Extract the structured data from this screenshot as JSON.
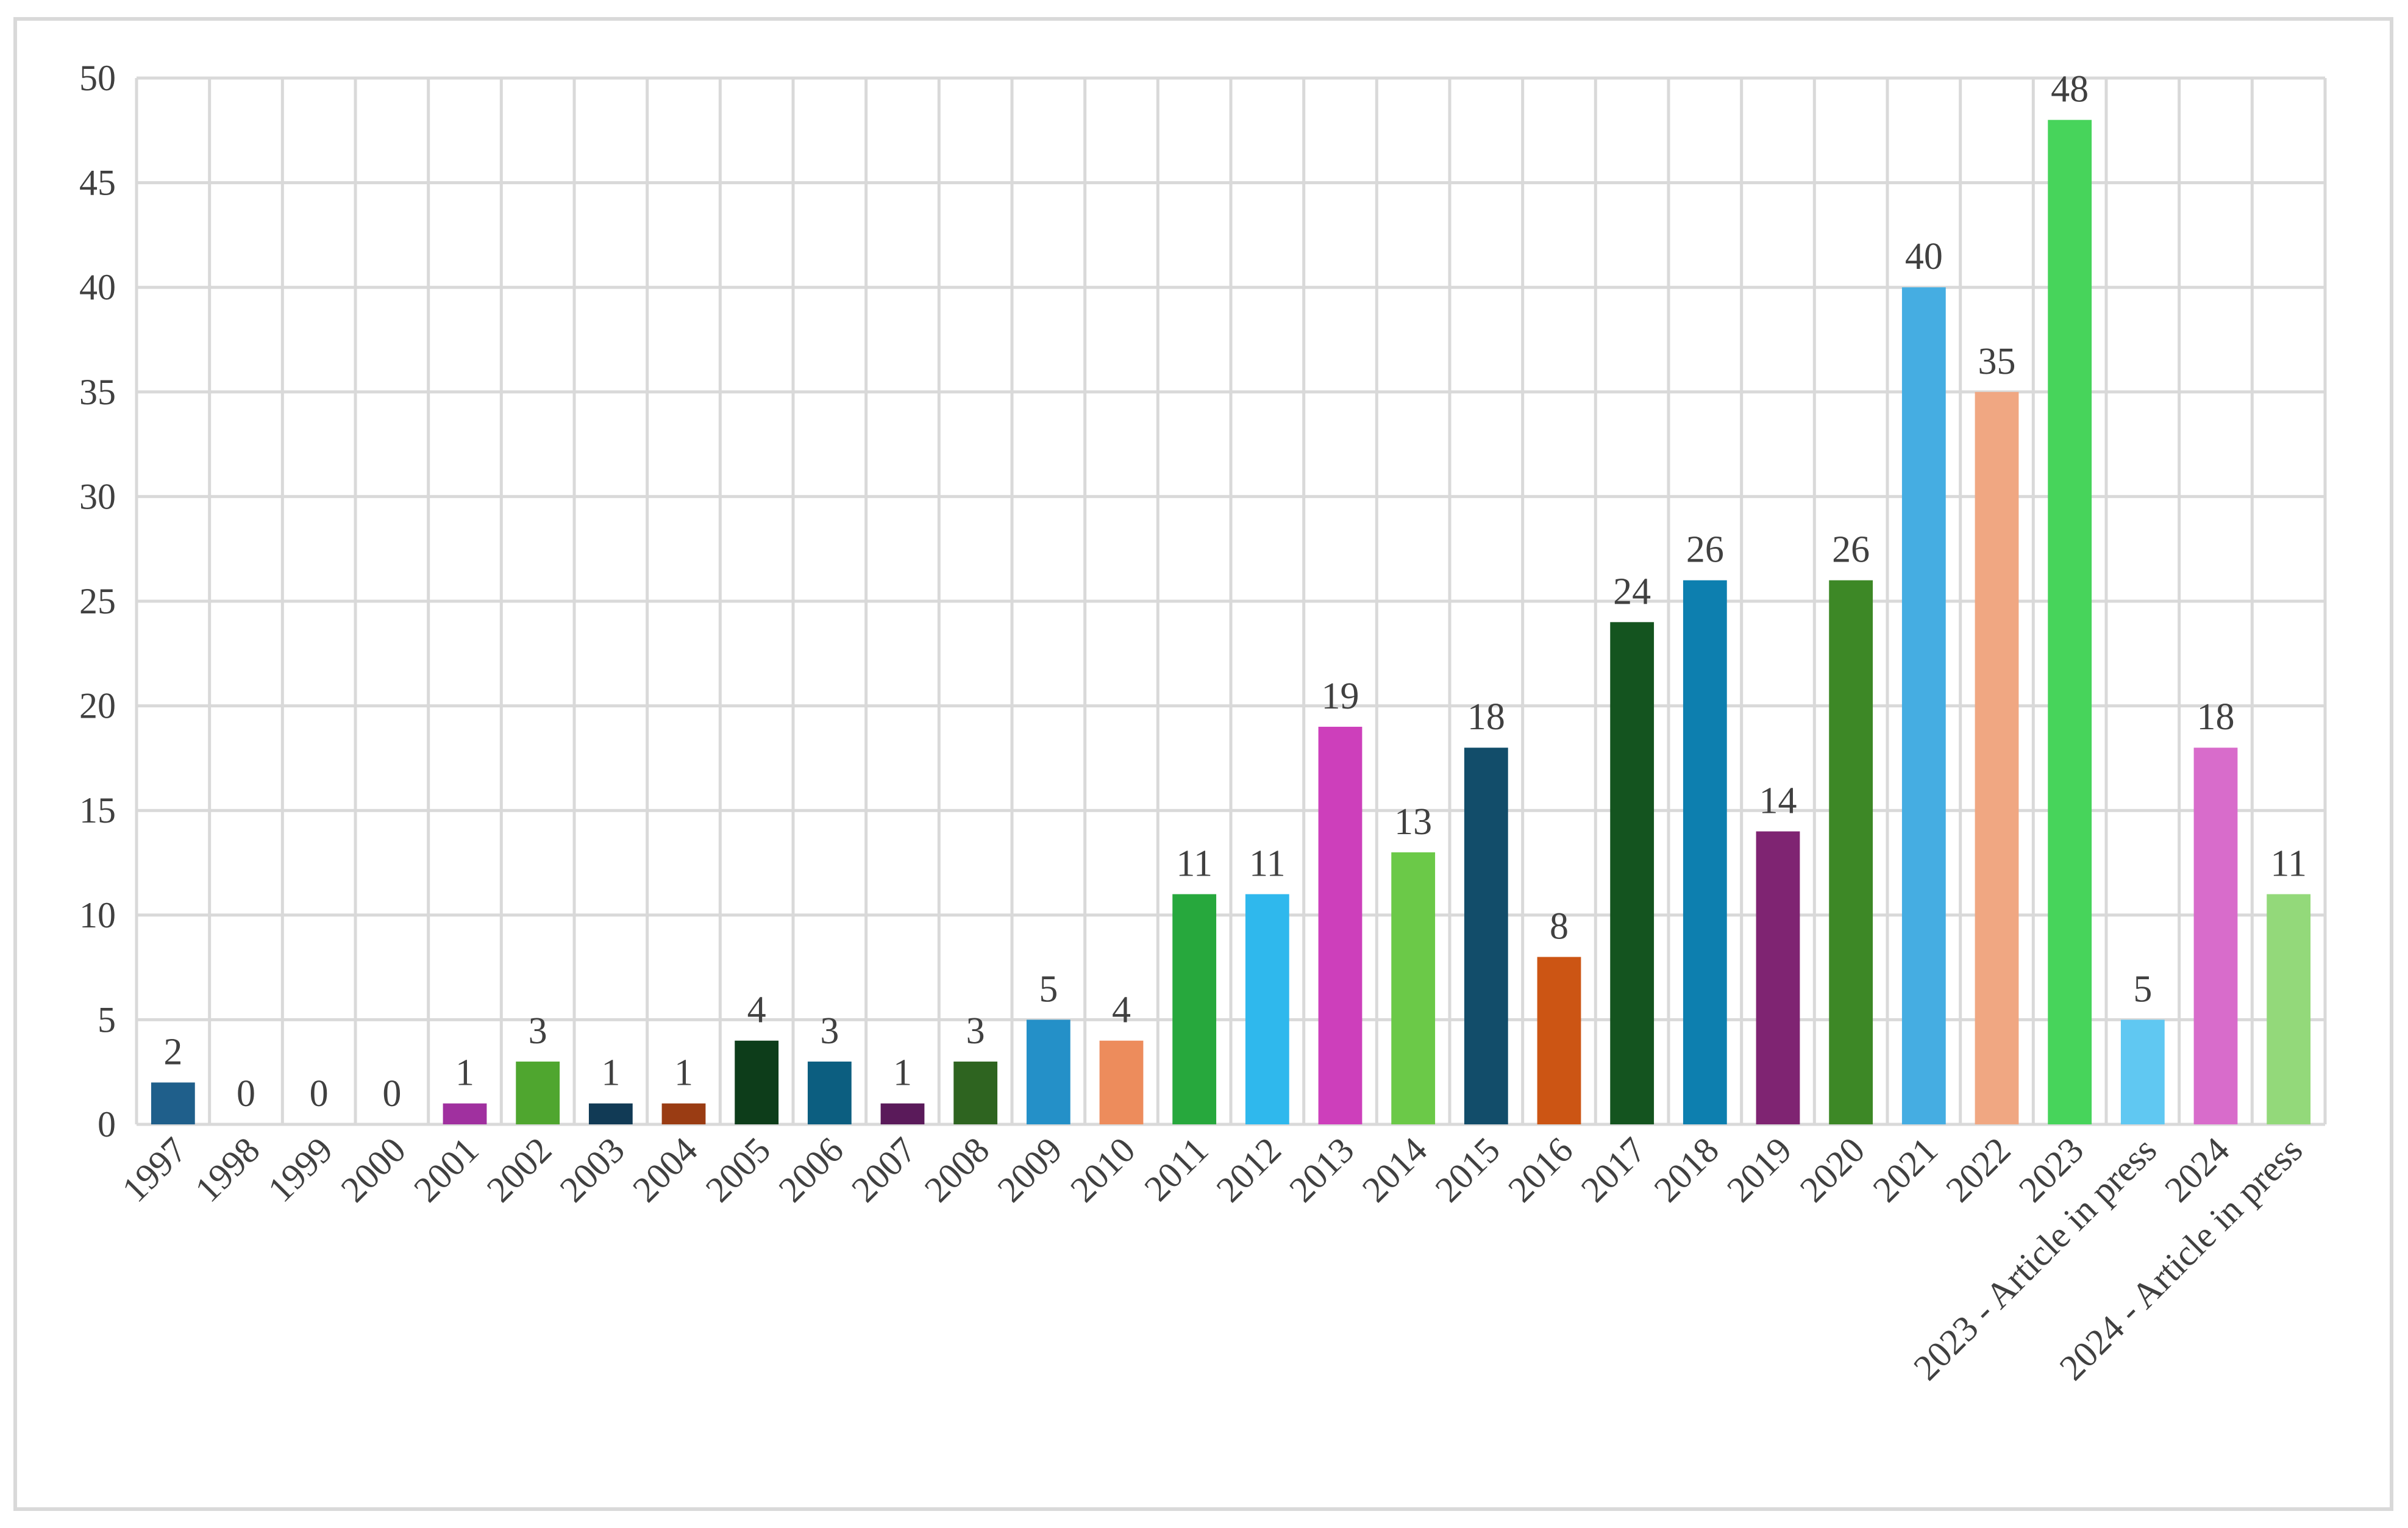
{
  "chart_data": {
    "type": "bar",
    "categories": [
      "1997",
      "1998",
      "1999",
      "2000",
      "2001",
      "2002",
      "2003",
      "2004",
      "2005",
      "2006",
      "2007",
      "2008",
      "2009",
      "2010",
      "2011",
      "2012",
      "2013",
      "2014",
      "2015",
      "2016",
      "2017",
      "2018",
      "2019",
      "2020",
      "2021",
      "2022",
      "2023",
      "2023 - Article in press",
      "2024",
      "2024 - Article in press"
    ],
    "values": [
      2,
      0,
      0,
      0,
      1,
      3,
      1,
      1,
      4,
      3,
      1,
      3,
      5,
      4,
      11,
      11,
      19,
      13,
      18,
      8,
      24,
      26,
      14,
      26,
      40,
      35,
      48,
      5,
      18,
      11
    ],
    "colors": [
      "#1f5f8b",
      "#1f5f8b",
      "#1f5f8b",
      "#1f5f8b",
      "#a0309f",
      "#4fa62f",
      "#113a55",
      "#9a3c13",
      "#0d3d1a",
      "#0c5e80",
      "#5a1a5a",
      "#2e6420",
      "#2490c8",
      "#ed8c5c",
      "#27a83d",
      "#2fb8ed",
      "#cd3fbb",
      "#6bc948",
      "#124d6a",
      "#cc5514",
      "#14541f",
      "#0d7faf",
      "#7f2472",
      "#3d8826",
      "#45ade2",
      "#f0a782",
      "#47d45b",
      "#60c8f2",
      "#d86ccb",
      "#93d97a"
    ],
    "title": "",
    "xlabel": "",
    "ylabel": "",
    "ylim": [
      0,
      50
    ],
    "yticks": [
      0,
      5,
      10,
      15,
      20,
      25,
      30,
      35,
      40,
      45,
      50
    ],
    "grid": true,
    "legend": "none"
  }
}
